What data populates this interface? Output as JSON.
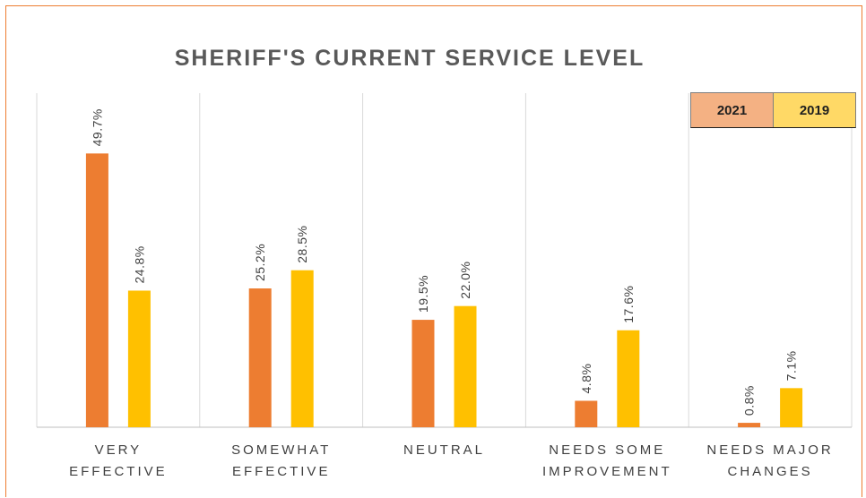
{
  "chart_data": {
    "type": "bar",
    "title": "SHERIFF'S CURRENT SERVICE LEVEL",
    "categories": [
      [
        "VERY",
        "EFFECTIVE"
      ],
      [
        "SOMEWHAT",
        "EFFECTIVE"
      ],
      [
        "NEUTRAL"
      ],
      [
        "NEEDS SOME",
        "IMPROVEMENT"
      ],
      [
        "NEEDS MAJOR",
        "CHANGES"
      ]
    ],
    "series": [
      {
        "name": "2021",
        "values": [
          49.7,
          25.2,
          19.5,
          4.8,
          0.8
        ],
        "labels": [
          "49.7%",
          "25.2%",
          "19.5%",
          "4.8%",
          "0.8%"
        ],
        "color": "#ED7D31"
      },
      {
        "name": "2019",
        "values": [
          24.8,
          28.5,
          22.0,
          17.6,
          7.1
        ],
        "labels": [
          "24.8%",
          "28.5%",
          "22.0%",
          "17.6%",
          "7.1%"
        ],
        "color": "#FFC000"
      }
    ],
    "ylim": [
      0,
      60
    ],
    "grid": "vertical category separators",
    "legend": {
      "placement": "top-right",
      "items": [
        {
          "label": "2021",
          "background": "#F4B183"
        },
        {
          "label": "2019",
          "background": "#FFD966"
        }
      ]
    }
  }
}
